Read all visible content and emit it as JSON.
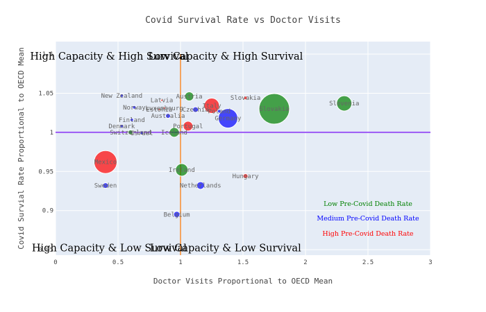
{
  "chart_data": {
    "type": "scatter",
    "title": "Covid Survival Rate vs Doctor Visits",
    "xlabel": "Doctor Visits Proportional to OECD Mean",
    "ylabel": "Covid Survial Rate Proportional to OECD Mean",
    "xlim": [
      0,
      3
    ],
    "ylim": [
      0.843,
      1.116
    ],
    "x_ticks": [
      0,
      0.5,
      1,
      1.5,
      2,
      2.5,
      3
    ],
    "x_tick_labels": [
      "0",
      "0.5",
      "1",
      "1.5",
      "2",
      "2.5",
      "3"
    ],
    "y_ticks": [
      0.85,
      0.9,
      0.95,
      1,
      1.05,
      1.1
    ],
    "y_tick_labels": [
      "0.85",
      "0.9",
      "0.95",
      "1",
      "1.05",
      "1.1"
    ],
    "grid": true,
    "reference_lines": {
      "vertical_x": 1,
      "vertical_color": "#f4a460",
      "horizontal_y": 1,
      "horizontal_color": "#9b59f5"
    },
    "quadrant_labels": [
      {
        "text": "High Capacity & High Survival",
        "quadrant": "top-left"
      },
      {
        "text": "Low Capacity & High Survival",
        "quadrant": "top-right"
      },
      {
        "text": "High Capacity & Low Survival",
        "quadrant": "bottom-left"
      },
      {
        "text": "Low Capacity & Low Survival",
        "quadrant": "bottom-right"
      }
    ],
    "legend_placement": "bottom-right",
    "series": [
      {
        "name": "Low Pre-Covid Death Rate",
        "color": "#008000",
        "points": [
          {
            "label": "Slovakia",
            "x": 1.75,
            "y": 1.03,
            "size": 44
          },
          {
            "label": "Slovenia",
            "x": 2.31,
            "y": 1.037,
            "size": 22
          },
          {
            "label": "Austria",
            "x": 1.07,
            "y": 1.046,
            "size": 13
          },
          {
            "label": "Ireland",
            "x": 1.01,
            "y": 0.952,
            "size": 18
          },
          {
            "label": "Iceland",
            "x": 0.95,
            "y": 1.0,
            "size": 14
          },
          {
            "label": "Switzerland",
            "x": 0.6,
            "y": 1.0,
            "size": 7
          }
        ]
      },
      {
        "name": "Medium Pre-Covid Death Rate",
        "color": "#0000ff",
        "points": [
          {
            "label": "Germany",
            "x": 1.38,
            "y": 1.018,
            "size": 28
          },
          {
            "label": "Czechia",
            "x": 1.12,
            "y": 1.029,
            "size": 8
          },
          {
            "label": "Netherlands",
            "x": 1.16,
            "y": 0.932,
            "size": 11
          },
          {
            "label": "Belgium",
            "x": 0.97,
            "y": 0.895,
            "size": 9
          },
          {
            "label": "Sweden",
            "x": 0.4,
            "y": 0.932,
            "size": 8
          },
          {
            "label": "New Zealand",
            "x": 0.53,
            "y": 1.047,
            "size": 5
          },
          {
            "label": "Norway",
            "x": 0.63,
            "y": 1.032,
            "size": 5
          },
          {
            "label": "Finland",
            "x": 0.61,
            "y": 1.016,
            "size": 5
          },
          {
            "label": "Denmark",
            "x": 0.53,
            "y": 1.008,
            "size": 5
          },
          {
            "label": "Israel",
            "x": 0.69,
            "y": 0.999,
            "size": 5
          },
          {
            "label": "Australia",
            "x": 0.9,
            "y": 1.021,
            "size": 7
          },
          {
            "label": "Poland",
            "x": 1.31,
            "y": 1.027,
            "size": 5
          }
        ]
      },
      {
        "name": "High Pre-Covid Death Rate",
        "color": "#ff0000",
        "points": [
          {
            "label": "Mexico",
            "x": 0.4,
            "y": 0.962,
            "size": 33
          },
          {
            "label": "Italy",
            "x": 1.25,
            "y": 1.034,
            "size": 22
          },
          {
            "label": "Portugal",
            "x": 1.06,
            "y": 1.008,
            "size": 14
          },
          {
            "label": "Hungary",
            "x": 1.52,
            "y": 0.944,
            "size": 7
          },
          {
            "label": "Slovakia",
            "x": 1.52,
            "y": 1.044,
            "size": 5
          },
          {
            "label": "Latvia",
            "x": 0.85,
            "y": 1.041,
            "size": 3
          },
          {
            "label": "Estonia",
            "x": 0.83,
            "y": 1.029,
            "size": 3
          },
          {
            "label": "Luxembourg",
            "x": 0.87,
            "y": 1.031,
            "size": 3
          }
        ]
      }
    ]
  }
}
